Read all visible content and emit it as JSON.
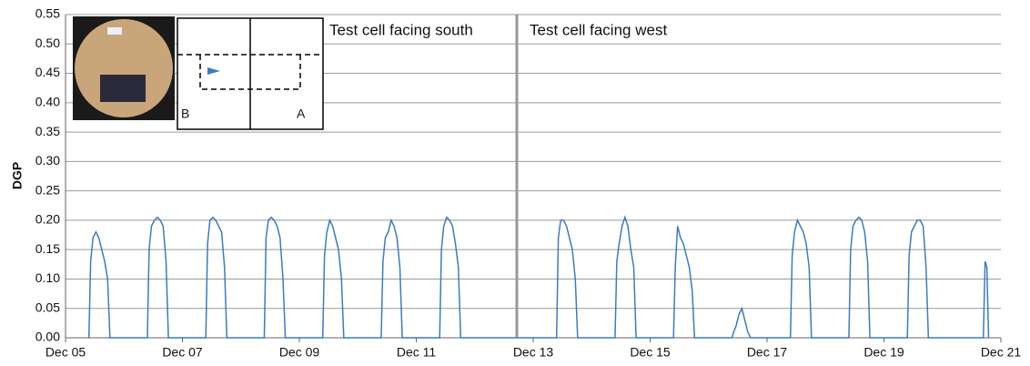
{
  "chart_data": {
    "type": "line",
    "ylabel": "DGP",
    "annotations": [
      "Test cell facing south",
      "Test cell facing west"
    ],
    "inset_labels": [
      "B",
      "A"
    ],
    "color": "#3a7cc0",
    "grid": true,
    "xlim": [
      5,
      21
    ],
    "ylim": [
      0,
      0.55
    ],
    "xticks": [
      {
        "value": 5,
        "label": "Dec 05"
      },
      {
        "value": 7,
        "label": "Dec 07"
      },
      {
        "value": 9,
        "label": "Dec 09"
      },
      {
        "value": 11,
        "label": "Dec 11"
      },
      {
        "value": 13,
        "label": "Dec 13"
      },
      {
        "value": 15,
        "label": "Dec 15"
      },
      {
        "value": 17,
        "label": "Dec 17"
      },
      {
        "value": 19,
        "label": "Dec 19"
      },
      {
        "value": 21,
        "label": "Dec 21"
      }
    ],
    "yticks": [
      {
        "value": 0,
        "label": "0.00"
      },
      {
        "value": 0.05,
        "label": "0.05"
      },
      {
        "value": 0.1,
        "label": "0.10"
      },
      {
        "value": 0.15,
        "label": "0.15"
      },
      {
        "value": 0.2,
        "label": "0.20"
      },
      {
        "value": 0.25,
        "label": "0.25"
      },
      {
        "value": 0.3,
        "label": "0.30"
      },
      {
        "value": 0.35,
        "label": "0.35"
      },
      {
        "value": 0.4,
        "label": "0.40"
      },
      {
        "value": 0.45,
        "label": "0.45"
      },
      {
        "value": 0.5,
        "label": "0.50"
      },
      {
        "value": 0.55,
        "label": "0.55"
      }
    ],
    "x": [
      5.4,
      5.43,
      5.47,
      5.52,
      5.57,
      5.62,
      5.67,
      5.72,
      5.76,
      6.4,
      6.43,
      6.47,
      6.52,
      6.57,
      6.62,
      6.67,
      6.72,
      6.76,
      7.4,
      7.43,
      7.47,
      7.52,
      7.57,
      7.62,
      7.67,
      7.72,
      7.76,
      8.4,
      8.43,
      8.47,
      8.52,
      8.57,
      8.62,
      8.67,
      8.72,
      8.76,
      9.4,
      9.43,
      9.47,
      9.52,
      9.57,
      9.62,
      9.67,
      9.72,
      9.76,
      10.4,
      10.43,
      10.47,
      10.52,
      10.57,
      10.62,
      10.67,
      10.72,
      10.76,
      11.4,
      11.43,
      11.47,
      11.52,
      11.57,
      11.62,
      11.67,
      11.72,
      11.76,
      13.4,
      13.43,
      13.47,
      13.52,
      13.57,
      13.62,
      13.67,
      13.72,
      13.76,
      14.4,
      14.43,
      14.47,
      14.52,
      14.57,
      14.62,
      14.67,
      14.72,
      14.76,
      15.4,
      15.43,
      15.47,
      15.52,
      15.57,
      15.62,
      15.67,
      15.72,
      15.76,
      16.4,
      16.43,
      16.47,
      16.52,
      16.57,
      16.62,
      16.67,
      16.72,
      16.76,
      17.4,
      17.43,
      17.47,
      17.52,
      17.57,
      17.62,
      17.67,
      17.72,
      17.76,
      18.4,
      18.43,
      18.47,
      18.52,
      18.57,
      18.62,
      18.67,
      18.72,
      18.76,
      19.4,
      19.43,
      19.47,
      19.52,
      19.57,
      19.62,
      19.67,
      19.72,
      19.76,
      20.7,
      20.73,
      20.76,
      20.79
    ],
    "values": [
      0,
      0.13,
      0.17,
      0.18,
      0.17,
      0.15,
      0.13,
      0.1,
      0,
      0,
      0.15,
      0.19,
      0.2,
      0.205,
      0.2,
      0.19,
      0.13,
      0,
      0,
      0.16,
      0.2,
      0.205,
      0.2,
      0.19,
      0.18,
      0.12,
      0,
      0,
      0.17,
      0.2,
      0.205,
      0.2,
      0.19,
      0.17,
      0.1,
      0,
      0,
      0.14,
      0.18,
      0.2,
      0.19,
      0.17,
      0.15,
      0.1,
      0,
      0,
      0.13,
      0.17,
      0.18,
      0.2,
      0.19,
      0.17,
      0.12,
      0,
      0,
      0.15,
      0.19,
      0.205,
      0.2,
      0.19,
      0.16,
      0.12,
      0,
      0,
      0.17,
      0.2,
      0.2,
      0.19,
      0.17,
      0.15,
      0.1,
      0,
      0,
      0.13,
      0.16,
      0.19,
      0.205,
      0.19,
      0.15,
      0.12,
      0,
      0,
      0.12,
      0.19,
      0.17,
      0.16,
      0.14,
      0.12,
      0.08,
      0,
      0,
      0.01,
      0.02,
      0.04,
      0.05,
      0.03,
      0.01,
      0,
      0,
      0,
      0.14,
      0.18,
      0.2,
      0.19,
      0.18,
      0.16,
      0.12,
      0,
      0,
      0.15,
      0.19,
      0.2,
      0.205,
      0.2,
      0.18,
      0.13,
      0,
      0,
      0.14,
      0.18,
      0.19,
      0.2,
      0.2,
      0.19,
      0.12,
      0,
      0,
      0.13,
      0.12,
      0
    ]
  }
}
